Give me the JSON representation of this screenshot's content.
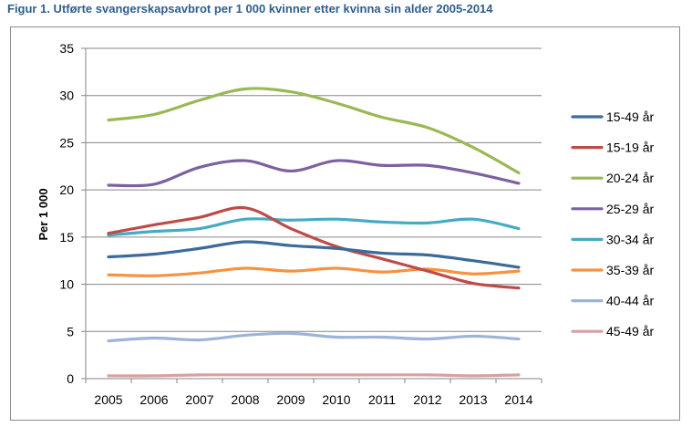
{
  "figure": {
    "title": "Figur 1. Utførte svangerskapsavbrot per 1 000 kvinner etter kvinna sin alder 2005-2014"
  },
  "chart_data": {
    "type": "line",
    "ylabel": "Per 1 000",
    "xlabel": "",
    "ylim": [
      0,
      35
    ],
    "yticks": [
      "0",
      "5",
      "10",
      "15",
      "20",
      "25",
      "30",
      "35"
    ],
    "grid": "horizontal",
    "legend_position": "right",
    "categories": [
      "2005",
      "2006",
      "2007",
      "2008",
      "2009",
      "2010",
      "2011",
      "2012",
      "2013",
      "2014"
    ],
    "series": [
      {
        "name": "15-49 år",
        "color": "#3c6a9a",
        "values": [
          12.9,
          13.2,
          13.8,
          14.5,
          14.1,
          13.8,
          13.3,
          13.1,
          12.5,
          11.8
        ]
      },
      {
        "name": "15-19 år",
        "color": "#be4b48",
        "values": [
          15.4,
          16.3,
          17.1,
          18.1,
          15.9,
          14.0,
          12.7,
          11.4,
          10.1,
          9.6
        ]
      },
      {
        "name": "20-24 år",
        "color": "#98b954",
        "values": [
          27.4,
          28.0,
          29.5,
          30.7,
          30.4,
          29.2,
          27.7,
          26.6,
          24.5,
          21.8
        ]
      },
      {
        "name": "25-29 år",
        "color": "#7d60a0",
        "values": [
          20.5,
          20.6,
          22.4,
          23.1,
          22.0,
          23.1,
          22.6,
          22.6,
          21.8,
          20.7
        ]
      },
      {
        "name": "30-34 år",
        "color": "#46aac4",
        "values": [
          15.2,
          15.6,
          15.9,
          16.9,
          16.8,
          16.9,
          16.6,
          16.5,
          16.9,
          15.9
        ]
      },
      {
        "name": "35-39 år",
        "color": "#f69240",
        "values": [
          11.0,
          10.9,
          11.2,
          11.7,
          11.4,
          11.7,
          11.3,
          11.6,
          11.1,
          11.4
        ]
      },
      {
        "name": "40-44 år",
        "color": "#9db4d8",
        "values": [
          4.0,
          4.3,
          4.1,
          4.6,
          4.8,
          4.4,
          4.4,
          4.2,
          4.5,
          4.2
        ]
      },
      {
        "name": "45-49 år",
        "color": "#d9a0a0",
        "values": [
          0.3,
          0.3,
          0.4,
          0.4,
          0.4,
          0.4,
          0.4,
          0.4,
          0.3,
          0.4
        ]
      }
    ]
  }
}
